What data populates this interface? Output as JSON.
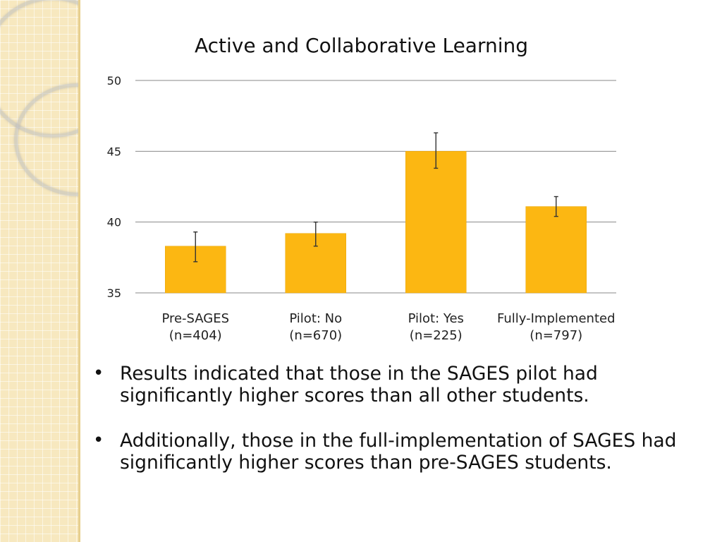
{
  "bullets": [
    "Results indicated that those in the SAGES pilot had significantly higher scores than all other students.",
    "Additionally, those in the full-implementation of SAGES had significantly higher scores than pre-SAGES students."
  ],
  "bullet_symbol": "•",
  "colors": {
    "bar": "#fcb712",
    "bar_edge": "#e9a60c",
    "grid": "#888888",
    "strip": "#f7e8bf"
  },
  "chart_data": {
    "type": "bar",
    "title": "Active and Collaborative Learning",
    "xlabel": "",
    "ylabel": "",
    "categories": [
      [
        "Pre-SAGES",
        "(n=404)"
      ],
      [
        "Pilot: No",
        "(n=670)"
      ],
      [
        "Pilot: Yes",
        "(n=225)"
      ],
      [
        "Fully-Implemented",
        "(n=797)"
      ]
    ],
    "values": [
      38.3,
      39.2,
      45.0,
      41.1
    ],
    "error_low": [
      37.2,
      38.3,
      43.8,
      40.4
    ],
    "error_high": [
      39.3,
      40.0,
      46.3,
      41.8
    ],
    "ylim": [
      35,
      50
    ],
    "yticks": [
      "35",
      "40",
      "45",
      "50"
    ],
    "ytick_values": [
      35,
      40,
      45,
      50
    ],
    "grid": true,
    "legend": "none"
  }
}
